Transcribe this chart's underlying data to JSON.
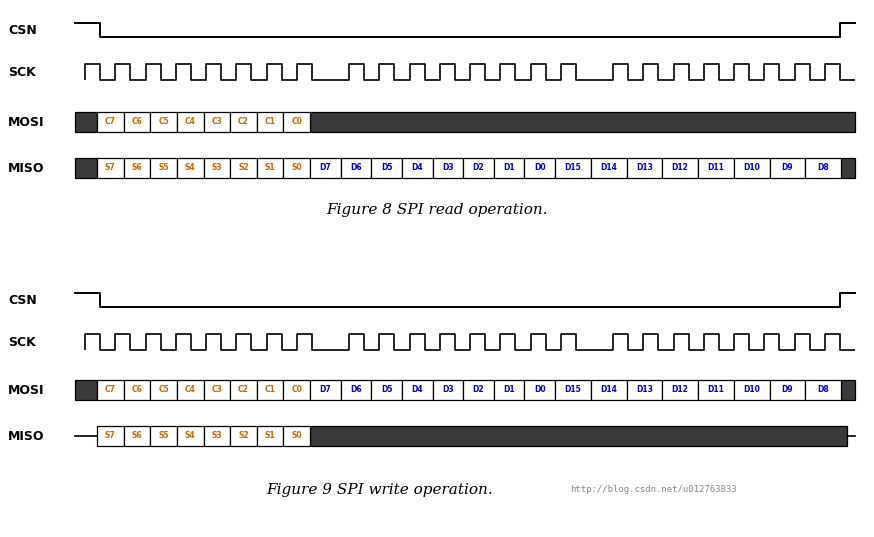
{
  "fig_width": 8.74,
  "fig_height": 5.37,
  "bg_color": "#ffffff",
  "dark_fill": "#3a3a3a",
  "line_color": "#000000",
  "cmd_labels_c": [
    "C7",
    "C6",
    "C5",
    "C4",
    "C3",
    "C2",
    "C1",
    "C0"
  ],
  "status_labels": [
    "S7",
    "S6",
    "S5",
    "S4",
    "S3",
    "S2",
    "S1",
    "S0"
  ],
  "data_byte1": [
    "D7",
    "D6",
    "D5",
    "D4",
    "D3",
    "D2",
    "D1",
    "D0"
  ],
  "data_byte2": [
    "D15",
    "D14",
    "D13",
    "D12",
    "D11",
    "D10",
    "D9",
    "D8"
  ],
  "fig8_caption": "Figure 8 SPI read operation.",
  "fig9_caption": "Figure 9 SPI write operation.",
  "watermark": "http://blog.csdn.net/u012763833",
  "label_color_c": "#cc6600",
  "label_color_d": "#0000cc",
  "label_color_s": "#cc6600",
  "sig_lw": 1.4,
  "cell_lw": 0.9
}
